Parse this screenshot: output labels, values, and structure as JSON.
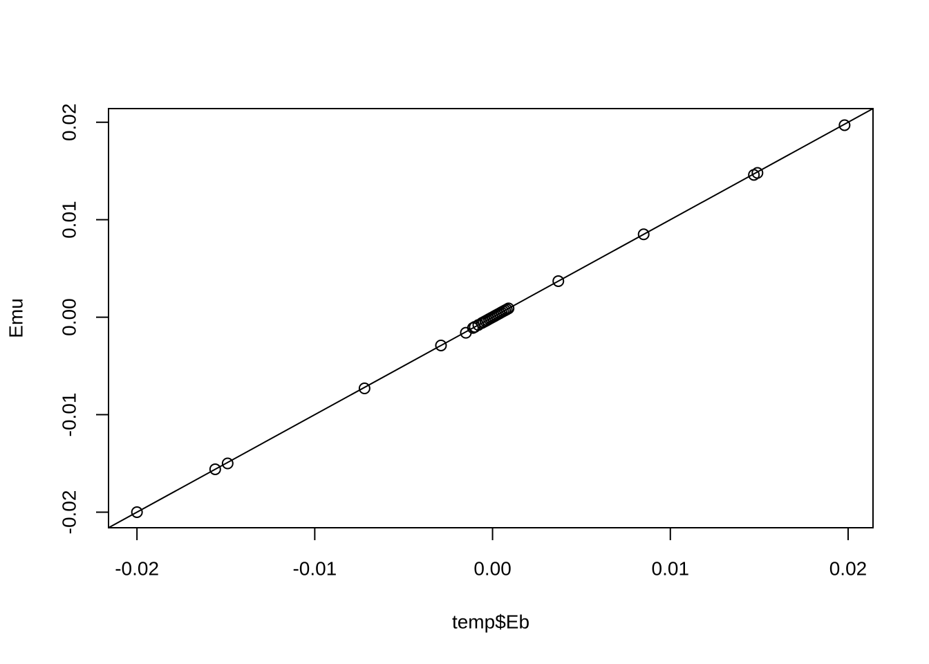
{
  "chart_data": {
    "type": "scatter",
    "x_label": "temp$Eb",
    "y_label": "Emu",
    "series": [
      {
        "color": "#000000",
        "x": [
          -0.02,
          -0.0156,
          -0.0149,
          -0.0072,
          -0.0029,
          -0.0015,
          -0.0011,
          -0.001,
          -0.0008,
          -0.0006,
          -0.0005,
          -0.0004,
          -0.0003,
          -0.0002,
          -0.0001,
          0.0,
          0.0001,
          0.0002,
          0.0003,
          0.0004,
          0.0005,
          0.0006,
          0.0007,
          0.0008,
          0.0009,
          0.0037,
          0.0085,
          0.0147,
          0.0149,
          0.0198
        ],
        "values": [
          -0.02,
          -0.0156,
          -0.015,
          -0.0073,
          -0.0029,
          -0.0016,
          -0.0011,
          -0.001,
          -0.0008,
          -0.0006,
          -0.0005,
          -0.0004,
          -0.0003,
          -0.0002,
          -0.0001,
          0.0,
          0.0001,
          0.0002,
          0.0003,
          0.0004,
          0.0005,
          0.0006,
          0.0007,
          0.0008,
          0.0009,
          0.0037,
          0.0085,
          0.0146,
          0.0148,
          0.0197
        ]
      }
    ],
    "reference_line": {
      "intercept": 0,
      "slope": 1
    },
    "xlim": [
      -0.0216,
      0.0214
    ],
    "ylim": [
      -0.0216,
      0.0214
    ],
    "xticks": [
      -0.02,
      -0.01,
      {
        "value": 0,
        "label": "0.00"
      },
      0.01,
      0.02
    ],
    "yticks": [
      -0.02,
      -0.01,
      {
        "value": 0,
        "label": "0.00"
      },
      0.01,
      0.02
    ]
  }
}
